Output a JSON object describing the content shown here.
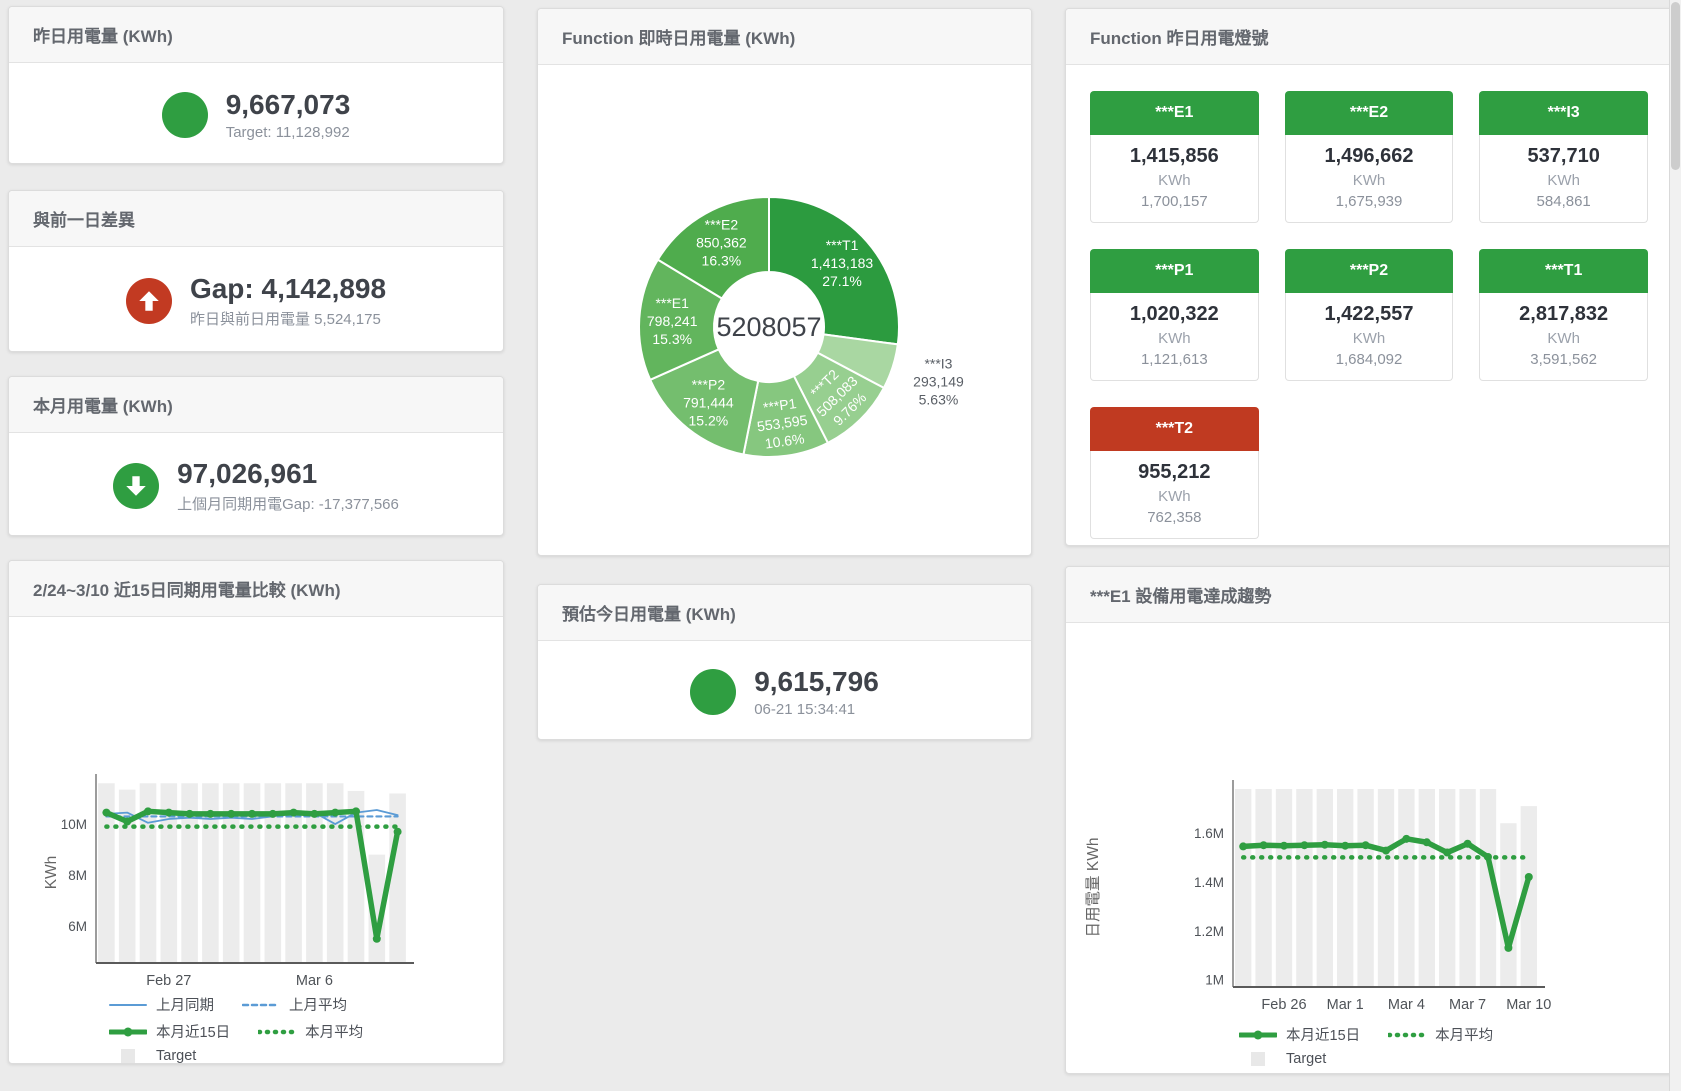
{
  "cards": {
    "yesterday": {
      "title": "昨日用電量 (KWh)",
      "value": "9,667,073",
      "sub": "Target: 11,128,992",
      "status": "green",
      "arrow": "none"
    },
    "gap_prev_day": {
      "title": "與前一日差異",
      "value": "Gap: 4,142,898",
      "sub": "昨日與前日用電量 5,524,175",
      "status": "red",
      "arrow": "up"
    },
    "month": {
      "title": "本月用電量 (KWh)",
      "value": "97,026,961",
      "sub": "上個月同期用電Gap: -17,377,566",
      "status": "green",
      "arrow": "down"
    },
    "today_estimate": {
      "title": "預估今日用電量 (KWh)",
      "value": "9,615,796",
      "sub": "06-21 15:34:41",
      "status": "green",
      "arrow": "none"
    }
  },
  "donut_card": {
    "title": "Function 即時日用電量 (KWh)"
  },
  "lights_card": {
    "title": "Function 昨日用電燈號",
    "tiles": [
      {
        "label": "***E1",
        "value": "1,415,856",
        "unit": "KWh",
        "target": "1,700,157",
        "status": "green"
      },
      {
        "label": "***E2",
        "value": "1,496,662",
        "unit": "KWh",
        "target": "1,675,939",
        "status": "green"
      },
      {
        "label": "***I3",
        "value": "537,710",
        "unit": "KWh",
        "target": "584,861",
        "status": "green"
      },
      {
        "label": "***P1",
        "value": "1,020,322",
        "unit": "KWh",
        "target": "1,121,613",
        "status": "green"
      },
      {
        "label": "***P2",
        "value": "1,422,557",
        "unit": "KWh",
        "target": "1,684,092",
        "status": "green"
      },
      {
        "label": "***T1",
        "value": "2,817,832",
        "unit": "KWh",
        "target": "3,591,562",
        "status": "green"
      },
      {
        "label": "***T2",
        "value": "955,212",
        "unit": "KWh",
        "target": "762,358",
        "status": "red"
      }
    ]
  },
  "trend_left": {
    "title": "2/24~3/10 近15日同期用電量比較 (KWh)"
  },
  "trend_right": {
    "title": "***E1 設備用電達成趨勢"
  },
  "colors": {
    "green": "#2f9e41",
    "red": "#c23a22",
    "blue": "#5b9bd5",
    "target_bar": "#ececec"
  },
  "chart_data": [
    {
      "type": "pie",
      "title": "Function 即時日用電量 (KWh)",
      "center_total": "5208057",
      "legend_position": "none",
      "slices": [
        {
          "name": "***T1",
          "value": 1413183,
          "value_label": "1,413,183",
          "pct_label": "27.1%",
          "color": "#2c9b3f",
          "label_outside": false
        },
        {
          "name": "***I3",
          "value": 293149,
          "value_label": "293,149",
          "pct_label": "5.63%",
          "color": "#a9d7a2",
          "label_outside": true
        },
        {
          "name": "***T2",
          "value": 508083,
          "value_label": "508,083",
          "pct_label": "9.76%",
          "color": "#97cf90",
          "label_outside": false
        },
        {
          "name": "***P1",
          "value": 553595,
          "value_label": "553,595",
          "pct_label": "10.6%",
          "color": "#86c77f",
          "label_outside": false
        },
        {
          "name": "***P2",
          "value": 791444,
          "value_label": "791,444",
          "pct_label": "15.2%",
          "color": "#74be6e",
          "label_outside": false
        },
        {
          "name": "***E1",
          "value": 798241,
          "value_label": "798,241",
          "pct_label": "15.3%",
          "color": "#62b55d",
          "label_outside": false
        },
        {
          "name": "***E2",
          "value": 850362,
          "value_label": "850,362",
          "pct_label": "16.3%",
          "color": "#4fac4d",
          "label_outside": false
        }
      ]
    },
    {
      "type": "line",
      "title": "2/24~3/10 近15日同期用電量比較 (KWh)",
      "xlabel": "",
      "ylabel": "KWh",
      "unit": "millions of KWh",
      "ylim": [
        4.55,
        11.65
      ],
      "grid": false,
      "legend_position": "bottom-left",
      "yticks": [
        {
          "v": 6,
          "label": "6M"
        },
        {
          "v": 8,
          "label": "8M"
        },
        {
          "v": 10,
          "label": "10M"
        }
      ],
      "xticks": [
        {
          "i": 3,
          "label": "Feb 27"
        },
        {
          "i": 10,
          "label": "Mar 6"
        }
      ],
      "x_days": [
        "2/24",
        "2/25",
        "2/26",
        "2/27",
        "2/28",
        "3/1",
        "3/2",
        "3/3",
        "3/4",
        "3/5",
        "3/6",
        "3/7",
        "3/8",
        "3/9",
        "3/10"
      ],
      "series": [
        {
          "name": "Target",
          "type": "bar",
          "color": "#ececec",
          "values": [
            11.6,
            11.35,
            11.6,
            11.6,
            11.6,
            11.6,
            11.6,
            11.6,
            11.6,
            11.6,
            11.6,
            11.6,
            11.3,
            8.8,
            11.2
          ]
        },
        {
          "name": "上月同期",
          "type": "line",
          "style": "solid",
          "color": "#5b9bd5",
          "values": [
            10.4,
            10.45,
            10.05,
            10.2,
            10.25,
            10.2,
            10.25,
            10.2,
            10.3,
            10.5,
            10.45,
            10.0,
            10.45,
            10.55,
            10.35
          ]
        },
        {
          "name": "上月平均",
          "type": "line",
          "style": "dashed",
          "color": "#5b9bd5",
          "values": [
            10.3,
            10.3,
            10.3,
            10.3,
            10.3,
            10.3,
            10.3,
            10.3,
            10.3,
            10.3,
            10.3,
            10.3,
            10.3,
            10.3,
            10.3
          ]
        },
        {
          "name": "本月近15日",
          "type": "line",
          "style": "thick",
          "color": "#2f9e41",
          "values": [
            10.45,
            10.1,
            10.5,
            10.45,
            10.4,
            10.4,
            10.4,
            10.4,
            10.4,
            10.45,
            10.4,
            10.45,
            10.5,
            5.5,
            9.7
          ]
        },
        {
          "name": "本月平均",
          "type": "line",
          "style": "dotted",
          "color": "#2f9e41",
          "values": [
            9.9,
            9.9,
            9.9,
            9.9,
            9.9,
            9.9,
            9.9,
            9.9,
            9.9,
            9.9,
            9.9,
            9.9,
            9.9,
            9.9,
            9.9
          ]
        }
      ],
      "legend_rows": [
        [
          "上月同期",
          "上月平均"
        ],
        [
          "本月近15日",
          "本月平均"
        ],
        [
          "Target"
        ]
      ]
    },
    {
      "type": "line",
      "title": "***E1 設備用電達成趨勢",
      "xlabel": "",
      "ylabel": "日用電量 KWh",
      "unit": "millions of KWh",
      "ylim": [
        0.97,
        1.784
      ],
      "grid": false,
      "legend_position": "bottom-left",
      "yticks": [
        {
          "v": 1,
          "label": "1M"
        },
        {
          "v": 1.2,
          "label": "1.2M"
        },
        {
          "v": 1.4,
          "label": "1.4M"
        },
        {
          "v": 1.6,
          "label": "1.6M"
        }
      ],
      "xticks": [
        {
          "i": 2,
          "label": "Feb 26"
        },
        {
          "i": 5,
          "label": "Mar 1"
        },
        {
          "i": 8,
          "label": "Mar 4"
        },
        {
          "i": 11,
          "label": "Mar 7"
        },
        {
          "i": 14,
          "label": "Mar 10"
        }
      ],
      "x_days": [
        "2/24",
        "2/25",
        "2/26",
        "2/27",
        "2/28",
        "3/1",
        "3/2",
        "3/3",
        "3/4",
        "3/5",
        "3/6",
        "3/7",
        "3/8",
        "3/9",
        "3/10"
      ],
      "series": [
        {
          "name": "Target",
          "type": "bar",
          "color": "#ececec",
          "values": [
            1.78,
            1.78,
            1.78,
            1.78,
            1.78,
            1.78,
            1.78,
            1.78,
            1.78,
            1.78,
            1.78,
            1.78,
            1.78,
            1.64,
            1.71
          ]
        },
        {
          "name": "本月近15日",
          "type": "line",
          "style": "thick",
          "color": "#2f9e41",
          "values": [
            1.545,
            1.55,
            1.548,
            1.55,
            1.552,
            1.548,
            1.55,
            1.528,
            1.576,
            1.562,
            1.52,
            1.556,
            1.502,
            1.13,
            1.42
          ]
        },
        {
          "name": "本月平均",
          "type": "line",
          "style": "dotted",
          "color": "#2f9e41",
          "values": [
            1.5,
            1.5,
            1.5,
            1.5,
            1.5,
            1.5,
            1.5,
            1.5,
            1.5,
            1.5,
            1.5,
            1.5,
            1.5,
            1.5,
            1.5
          ]
        }
      ],
      "legend_rows": [
        [
          "本月近15日",
          "本月平均"
        ],
        [
          "Target"
        ]
      ]
    }
  ]
}
